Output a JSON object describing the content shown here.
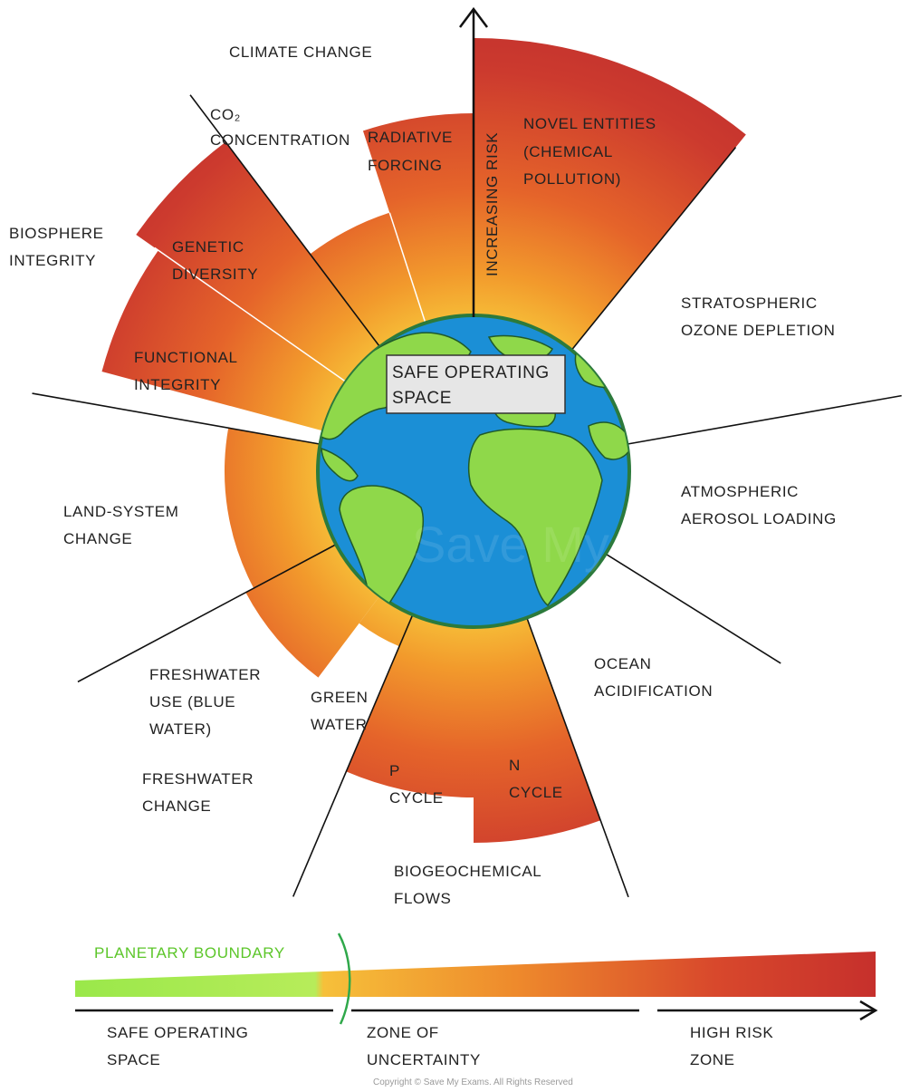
{
  "labels": {
    "climate_change": "CLIMATE CHANGE",
    "co2": [
      "CO₂",
      "CONCENTRATION"
    ],
    "radiative": [
      "RADIATIVE",
      "FORCING"
    ],
    "increasing_risk": "INCREASING RISK",
    "novel": [
      "NOVEL ENTITIES",
      "(CHEMICAL",
      "POLLUTION)"
    ],
    "biosphere": [
      "BIOSPHERE",
      "INTEGRITY"
    ],
    "genetic": [
      "GENETIC",
      "DIVERSITY"
    ],
    "functional": [
      "FUNCTIONAL",
      "INTEGRITY"
    ],
    "stratospheric": [
      "STRATOSPHERIC",
      "OZONE DEPLETION"
    ],
    "safe_box": [
      "SAFE OPERATING",
      "SPACE"
    ],
    "atmospheric": [
      "ATMOSPHERIC",
      "AEROSOL LOADING"
    ],
    "land": [
      "LAND-SYSTEM",
      "CHANGE"
    ],
    "ocean": [
      "OCEAN",
      "ACIDIFICATION"
    ],
    "freshwater_use": [
      "FRESHWATER",
      "USE (BLUE",
      "WATER)"
    ],
    "green_water": [
      "GREEN",
      "WATER"
    ],
    "freshwater_change": [
      "FRESHWATER",
      "CHANGE"
    ],
    "p_cycle": [
      "P",
      "CYCLE"
    ],
    "n_cycle": [
      "N",
      "CYCLE"
    ],
    "biogeochemical": [
      "BIOGEOCHEMICAL",
      "FLOWS"
    ]
  },
  "legend": {
    "planetary_boundary": "PLANETARY BOUNDARY",
    "safe": [
      "SAFE OPERATING",
      "SPACE"
    ],
    "uncertainty": [
      "ZONE OF",
      "UNCERTAINTY"
    ],
    "high_risk": [
      "HIGH RISK",
      "ZONE"
    ]
  },
  "watermark": "Save My Exams",
  "copyright": "Copyright © Save My Exams. All Rights Reserved",
  "colors": {
    "safe_green": "#8fe84a",
    "uncertain_orange": "#f0a030",
    "high_risk_red": "#c83232",
    "ocean_blue": "#1b8fd6",
    "land_green": "#8fd84a"
  }
}
